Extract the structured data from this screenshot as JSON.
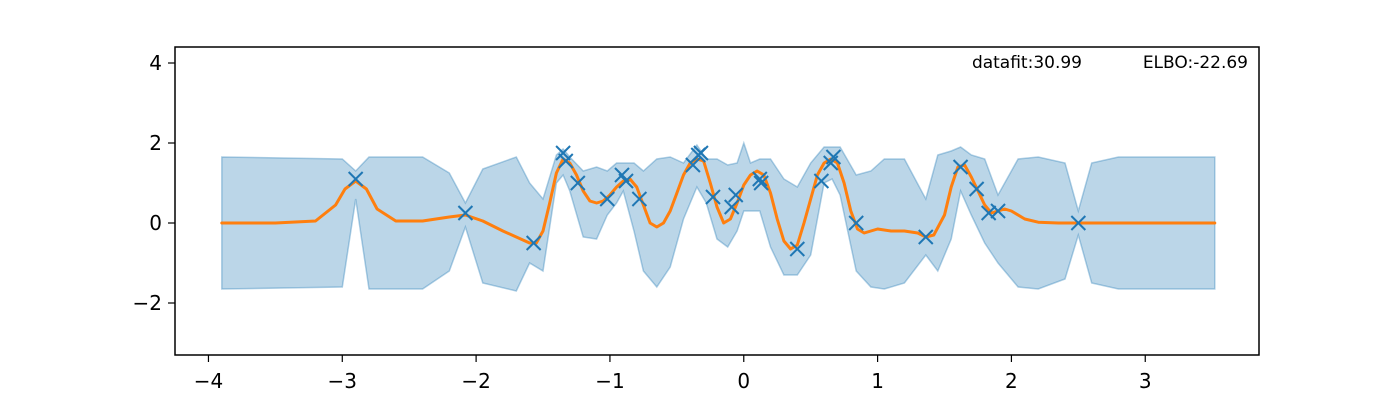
{
  "chart_data": {
    "type": "line",
    "title": "",
    "xlabel": "",
    "ylabel": "",
    "xlim": [
      -4.25,
      3.85
    ],
    "ylim": [
      -3.3,
      4.4
    ],
    "xticks": [
      -4,
      -3,
      -2,
      -1,
      0,
      1,
      2,
      3
    ],
    "yticks": [
      -2,
      0,
      2,
      4
    ],
    "xtick_labels": [
      "−4",
      "−3",
      "−2",
      "−1",
      "0",
      "1",
      "2",
      "3"
    ],
    "ytick_labels": [
      "−2",
      "0",
      "2",
      "4"
    ],
    "grid": false,
    "annotations": {
      "datafit": "datafit:30.99",
      "elbo": "ELBO:-22.69"
    },
    "colors": {
      "mean": "#ff7f0e",
      "band": "#1f77b4",
      "points": "#1f77b4"
    },
    "series": [
      {
        "kind": "scatter",
        "x": [
          -2.9,
          -2.08,
          -1.57,
          -1.35,
          -1.33,
          -1.24,
          -1.02,
          -0.91,
          -0.88,
          -0.78,
          -0.38,
          -0.34,
          -0.32,
          -0.23,
          -0.09,
          -0.06,
          0.12,
          0.13,
          0.4,
          0.58,
          0.65,
          0.67,
          0.84,
          1.36,
          1.62,
          1.74,
          1.83,
          1.9,
          2.5
        ],
        "y": [
          1.1,
          0.25,
          -0.5,
          1.75,
          1.55,
          1.0,
          0.6,
          1.2,
          1.05,
          0.6,
          1.45,
          1.7,
          1.75,
          0.65,
          0.4,
          0.7,
          1.1,
          1.0,
          -0.65,
          1.05,
          1.5,
          1.65,
          0.0,
          -0.35,
          1.4,
          0.85,
          0.25,
          0.3,
          0.0
        ]
      },
      {
        "kind": "line",
        "x": [
          -3.9,
          -3.5,
          -3.2,
          -3.05,
          -2.98,
          -2.9,
          -2.82,
          -2.74,
          -2.6,
          -2.4,
          -2.2,
          -2.08,
          -1.95,
          -1.8,
          -1.7,
          -1.6,
          -1.55,
          -1.5,
          -1.45,
          -1.4,
          -1.35,
          -1.3,
          -1.25,
          -1.2,
          -1.15,
          -1.1,
          -1.05,
          -1.0,
          -0.95,
          -0.9,
          -0.85,
          -0.8,
          -0.75,
          -0.7,
          -0.65,
          -0.6,
          -0.55,
          -0.5,
          -0.45,
          -0.4,
          -0.35,
          -0.3,
          -0.25,
          -0.2,
          -0.15,
          -0.1,
          -0.05,
          0.0,
          0.05,
          0.1,
          0.15,
          0.2,
          0.25,
          0.3,
          0.35,
          0.4,
          0.45,
          0.5,
          0.55,
          0.6,
          0.65,
          0.7,
          0.75,
          0.8,
          0.85,
          0.9,
          0.95,
          1.0,
          1.1,
          1.2,
          1.3,
          1.36,
          1.42,
          1.5,
          1.55,
          1.6,
          1.65,
          1.7,
          1.75,
          1.8,
          1.85,
          1.9,
          1.95,
          2.0,
          2.1,
          2.2,
          2.35,
          2.5,
          2.7,
          3.0,
          3.3,
          3.52
        ],
        "y": [
          0.0,
          0.0,
          0.05,
          0.45,
          0.85,
          1.05,
          0.85,
          0.35,
          0.05,
          0.05,
          0.15,
          0.2,
          0.05,
          -0.2,
          -0.35,
          -0.5,
          -0.5,
          -0.2,
          0.5,
          1.25,
          1.6,
          1.5,
          1.2,
          0.8,
          0.55,
          0.5,
          0.55,
          0.7,
          0.9,
          1.05,
          1.1,
          0.9,
          0.45,
          0.0,
          -0.1,
          0.0,
          0.3,
          0.75,
          1.2,
          1.5,
          1.6,
          1.55,
          1.0,
          0.4,
          0.0,
          0.1,
          0.5,
          0.95,
          1.2,
          1.3,
          1.2,
          0.75,
          0.1,
          -0.45,
          -0.65,
          -0.55,
          0.0,
          0.6,
          1.2,
          1.5,
          1.6,
          1.5,
          1.0,
          0.3,
          -0.15,
          -0.25,
          -0.2,
          -0.15,
          -0.2,
          -0.2,
          -0.25,
          -0.35,
          -0.3,
          0.2,
          0.9,
          1.4,
          1.45,
          1.15,
          0.8,
          0.45,
          0.25,
          0.3,
          0.35,
          0.3,
          0.1,
          0.02,
          0.0,
          0.0,
          0.0,
          0.0,
          0.0,
          0.0
        ]
      },
      {
        "kind": "band",
        "x": [
          -3.9,
          -3.0,
          -2.9,
          -2.8,
          -2.4,
          -2.2,
          -2.08,
          -1.95,
          -1.7,
          -1.6,
          -1.5,
          -1.4,
          -1.35,
          -1.3,
          -1.2,
          -1.1,
          -1.02,
          -0.95,
          -0.9,
          -0.82,
          -0.75,
          -0.65,
          -0.55,
          -0.45,
          -0.35,
          -0.28,
          -0.2,
          -0.12,
          -0.05,
          0.0,
          0.05,
          0.12,
          0.2,
          0.3,
          0.4,
          0.5,
          0.6,
          0.66,
          0.72,
          0.84,
          0.95,
          1.05,
          1.2,
          1.36,
          1.45,
          1.55,
          1.62,
          1.7,
          1.8,
          1.9,
          2.05,
          2.2,
          2.4,
          2.5,
          2.6,
          2.8,
          3.2,
          3.52
        ],
        "upper": [
          1.65,
          1.6,
          1.3,
          1.65,
          1.65,
          1.25,
          0.5,
          1.35,
          1.65,
          1.0,
          0.6,
          1.7,
          1.85,
          1.65,
          1.3,
          1.4,
          1.3,
          1.5,
          1.5,
          1.5,
          1.3,
          1.6,
          1.65,
          1.5,
          1.95,
          1.6,
          1.6,
          1.45,
          1.5,
          2.0,
          1.5,
          1.6,
          1.6,
          1.1,
          0.9,
          1.5,
          1.9,
          1.9,
          1.9,
          1.2,
          1.3,
          1.6,
          1.6,
          0.6,
          1.7,
          1.8,
          1.9,
          1.7,
          1.6,
          0.7,
          1.6,
          1.65,
          1.5,
          0.3,
          1.5,
          1.65,
          1.65,
          1.65
        ],
        "lower": [
          -1.65,
          -1.6,
          0.6,
          -1.65,
          -1.65,
          -1.2,
          -0.1,
          -1.5,
          -1.7,
          -1.0,
          -1.2,
          1.0,
          1.2,
          0.8,
          -0.35,
          -0.4,
          0.2,
          0.5,
          0.8,
          -0.2,
          -1.2,
          -1.6,
          -1.1,
          0.1,
          0.9,
          0.5,
          -0.4,
          -0.6,
          -0.2,
          0.3,
          0.3,
          0.3,
          -0.6,
          -1.3,
          -1.3,
          -0.8,
          1.0,
          1.1,
          0.7,
          -1.2,
          -1.6,
          -1.65,
          -1.5,
          -0.8,
          -1.2,
          -0.4,
          0.8,
          0.2,
          -0.5,
          -1.0,
          -1.6,
          -1.65,
          -1.4,
          -0.3,
          -1.5,
          -1.65,
          -1.65,
          -1.65
        ]
      }
    ]
  }
}
